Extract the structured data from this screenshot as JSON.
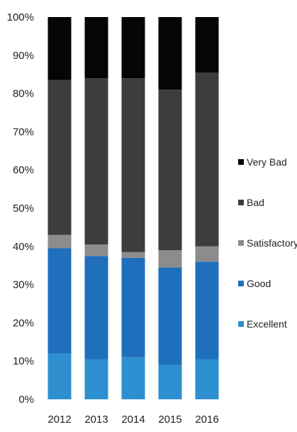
{
  "chart_data": {
    "type": "bar",
    "stacked": true,
    "categories": [
      "2012",
      "2013",
      "2014",
      "2015",
      "2016"
    ],
    "ylim": [
      0,
      100
    ],
    "ytick_labels": [
      "0%",
      "10%",
      "20%",
      "30%",
      "40%",
      "50%",
      "60%",
      "70%",
      "80%",
      "90%",
      "100%"
    ],
    "grid": false,
    "legend_position": "right",
    "series": [
      {
        "name": "Excellent",
        "color": "#2e8fd0",
        "values": [
          12,
          10.5,
          11,
          9,
          10.5
        ]
      },
      {
        "name": "Good",
        "color": "#1f6fbd",
        "values": [
          27.5,
          27,
          26,
          25.5,
          25.5
        ]
      },
      {
        "name": "Satisfactory",
        "color": "#8c8c8c",
        "values": [
          3.5,
          3,
          1.5,
          4.5,
          4
        ]
      },
      {
        "name": "Bad",
        "color": "#3d3d3d",
        "values": [
          40.5,
          43.5,
          45.5,
          42,
          45.5
        ]
      },
      {
        "name": "Very Bad",
        "color": "#050505",
        "values": [
          16.5,
          16,
          16,
          19,
          14.5
        ]
      }
    ]
  }
}
